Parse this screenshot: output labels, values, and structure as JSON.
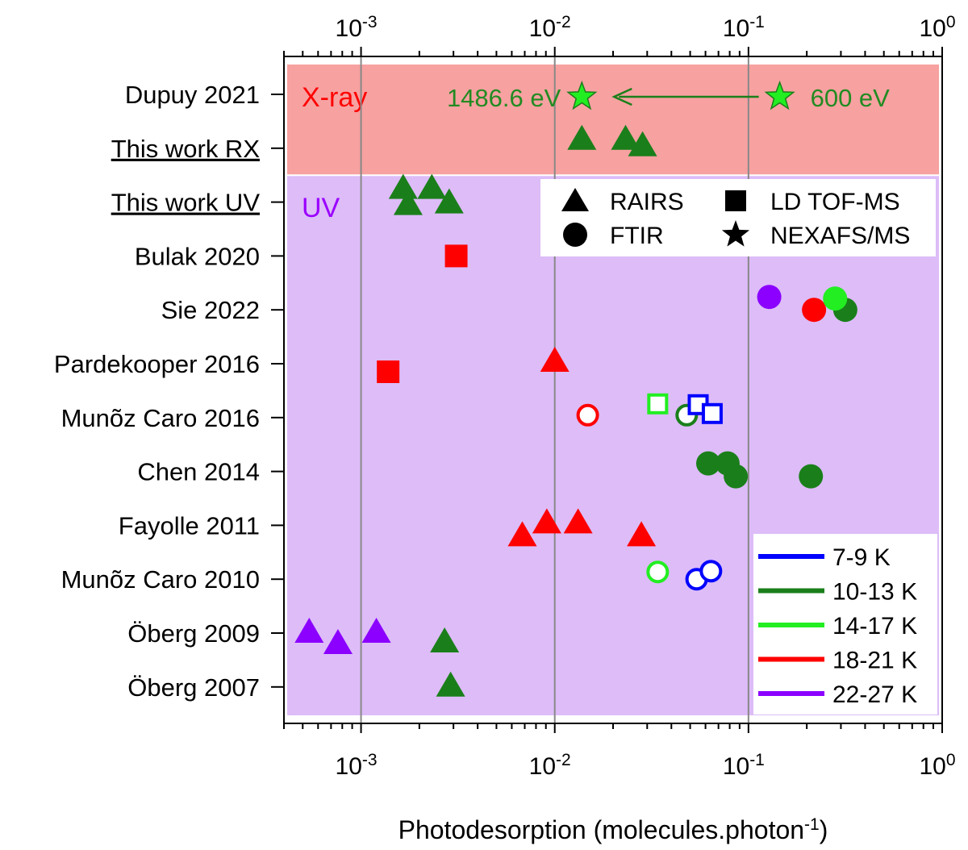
{
  "chart_data": {
    "type": "scatter",
    "title": "",
    "xlabel": "Photodesorption (molecules.photon",
    "xlabel_superscript": "-1",
    "xlabel_close": ")",
    "x_scale": "log",
    "xlim": [
      0.0004,
      1
    ],
    "x_ticks": [
      {
        "value": 0.001,
        "base": "10",
        "exp": "-3"
      },
      {
        "value": 0.01,
        "base": "10",
        "exp": "-2"
      },
      {
        "value": 0.1,
        "base": "10",
        "exp": "-1"
      },
      {
        "value": 1,
        "base": "10",
        "exp": "0"
      }
    ],
    "grid": "vertical lines at major ticks",
    "categories": [
      {
        "label": "Dupuy 2021",
        "underline": false
      },
      {
        "label": "This work RX",
        "underline": true
      },
      {
        "label": "This work UV",
        "underline": true
      },
      {
        "label": "Bulak 2020",
        "underline": false
      },
      {
        "label": "Sie 2022",
        "underline": false
      },
      {
        "label": "Pardekooper 2016",
        "underline": false
      },
      {
        "label": "Munõz Caro 2016",
        "underline": false
      },
      {
        "label": "Chen 2014",
        "underline": false
      },
      {
        "label": "Fayolle 2011",
        "underline": false
      },
      {
        "label": "Munõz Caro 2010",
        "underline": false
      },
      {
        "label": "Öberg 2009",
        "underline": false
      },
      {
        "label": "Öberg 2007",
        "underline": false
      }
    ],
    "regions": [
      {
        "label": "X-ray",
        "from": 0,
        "to": 1,
        "color": "#f7a1a1",
        "label_color": "#ff0000"
      },
      {
        "label": "UV",
        "from": 2,
        "to": 11,
        "color": "#ddbcf8",
        "label_color": "#9b00ff"
      }
    ],
    "annotations": [
      {
        "text": "1486.6 eV",
        "color": "#228B22"
      },
      {
        "text": "600 eV",
        "color": "#228B22"
      }
    ],
    "marker_legend": [
      {
        "label": "RAIRS",
        "marker": "triangle"
      },
      {
        "label": "LD TOF-MS",
        "marker": "square"
      },
      {
        "label": "FTIR",
        "marker": "circle"
      },
      {
        "label": "NEXAFS/MS",
        "marker": "star"
      }
    ],
    "temperature_legend": [
      {
        "label": "7-9 K",
        "color": "#0000ff"
      },
      {
        "label": "10-13 K",
        "color": "#1a7f1a"
      },
      {
        "label": "14-17 K",
        "color": "#22ee22"
      },
      {
        "label": "18-21 K",
        "color": "#ff0000"
      },
      {
        "label": "22-27 K",
        "color": "#8b00ff"
      }
    ],
    "points": [
      {
        "category": 0,
        "x": 0.0138,
        "marker": "star",
        "temp": "14-17 K",
        "filled": true
      },
      {
        "category": 0,
        "x": 0.145,
        "marker": "star",
        "temp": "14-17 K",
        "filled": true
      },
      {
        "category": 1,
        "x": 0.0138,
        "marker": "triangle",
        "temp": "10-13 K",
        "filled": true
      },
      {
        "category": 1,
        "x": 0.0232,
        "marker": "triangle",
        "temp": "10-13 K",
        "filled": true
      },
      {
        "category": 1,
        "x": 0.0284,
        "marker": "triangle",
        "temp": "10-13 K",
        "filled": true
      },
      {
        "category": 2,
        "x": 0.00165,
        "marker": "triangle",
        "temp": "10-13 K",
        "filled": true
      },
      {
        "category": 2,
        "x": 0.00175,
        "marker": "triangle",
        "temp": "10-13 K",
        "filled": true
      },
      {
        "category": 2,
        "x": 0.00232,
        "marker": "triangle",
        "temp": "10-13 K",
        "filled": true
      },
      {
        "category": 2,
        "x": 0.00285,
        "marker": "triangle",
        "temp": "10-13 K",
        "filled": true
      },
      {
        "category": 3,
        "x": 0.0031,
        "marker": "square",
        "temp": "18-21 K",
        "filled": true
      },
      {
        "category": 4,
        "x": 0.128,
        "marker": "circle",
        "temp": "22-27 K",
        "filled": true
      },
      {
        "category": 4,
        "x": 0.218,
        "marker": "circle",
        "temp": "18-21 K",
        "filled": true
      },
      {
        "category": 4,
        "x": 0.316,
        "marker": "circle",
        "temp": "10-13 K",
        "filled": true
      },
      {
        "category": 4,
        "x": 0.28,
        "marker": "circle",
        "temp": "14-17 K",
        "filled": true
      },
      {
        "category": 5,
        "x": 0.00138,
        "marker": "square",
        "temp": "18-21 K",
        "filled": true
      },
      {
        "category": 5,
        "x": 0.01,
        "marker": "triangle",
        "temp": "18-21 K",
        "filled": true
      },
      {
        "category": 6,
        "x": 0.0148,
        "marker": "circle",
        "temp": "18-21 K",
        "filled": false
      },
      {
        "category": 6,
        "x": 0.034,
        "marker": "square",
        "temp": "14-17 K",
        "filled": false
      },
      {
        "category": 6,
        "x": 0.048,
        "marker": "circle",
        "temp": "10-13 K",
        "filled": false
      },
      {
        "category": 6,
        "x": 0.055,
        "marker": "square",
        "temp": "7-9 K",
        "filled": false
      },
      {
        "category": 6,
        "x": 0.065,
        "marker": "square",
        "temp": "7-9 K",
        "filled": false
      },
      {
        "category": 7,
        "x": 0.062,
        "marker": "circle",
        "temp": "10-13 K",
        "filled": true
      },
      {
        "category": 7,
        "x": 0.078,
        "marker": "circle",
        "temp": "10-13 K",
        "filled": true
      },
      {
        "category": 7,
        "x": 0.086,
        "marker": "circle",
        "temp": "10-13 K",
        "filled": true
      },
      {
        "category": 7,
        "x": 0.21,
        "marker": "circle",
        "temp": "10-13 K",
        "filled": true
      },
      {
        "category": 8,
        "x": 0.0068,
        "marker": "triangle",
        "temp": "18-21 K",
        "filled": true
      },
      {
        "category": 8,
        "x": 0.0091,
        "marker": "triangle",
        "temp": "18-21 K",
        "filled": true
      },
      {
        "category": 8,
        "x": 0.0132,
        "marker": "triangle",
        "temp": "18-21 K",
        "filled": true
      },
      {
        "category": 8,
        "x": 0.028,
        "marker": "triangle",
        "temp": "18-21 K",
        "filled": true
      },
      {
        "category": 9,
        "x": 0.034,
        "marker": "circle",
        "temp": "14-17 K",
        "filled": false
      },
      {
        "category": 9,
        "x": 0.054,
        "marker": "circle",
        "temp": "7-9 K",
        "filled": false
      },
      {
        "category": 9,
        "x": 0.064,
        "marker": "circle",
        "temp": "7-9 K",
        "filled": false
      },
      {
        "category": 10,
        "x": 0.00054,
        "marker": "triangle",
        "temp": "22-27 K",
        "filled": true
      },
      {
        "category": 10,
        "x": 0.00076,
        "marker": "triangle",
        "temp": "22-27 K",
        "filled": true
      },
      {
        "category": 10,
        "x": 0.0012,
        "marker": "triangle",
        "temp": "22-27 K",
        "filled": true
      },
      {
        "category": 10,
        "x": 0.0027,
        "marker": "triangle",
        "temp": "10-13 K",
        "filled": true
      },
      {
        "category": 11,
        "x": 0.0029,
        "marker": "triangle",
        "temp": "10-13 K",
        "filled": true
      }
    ]
  }
}
